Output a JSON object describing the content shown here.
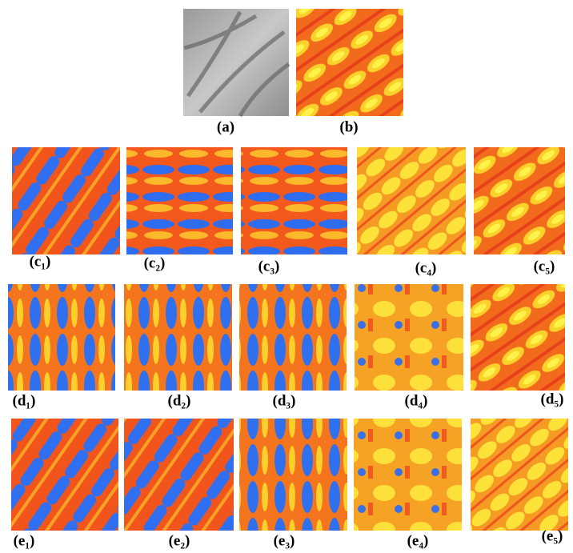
{
  "panels": {
    "a": "(a)",
    "b": "(b)",
    "c": [
      "(c₁)",
      "(c₂)",
      "(c₃)",
      "(c₄)",
      "(c₅)"
    ],
    "d": [
      "(d₁)",
      "(d₂)",
      "(d₃)",
      "(d₄)",
      "(d₅)"
    ],
    "e": [
      "(e₁)",
      "(e₂)",
      "(e₃)",
      "(e₄)",
      "(e₅)"
    ]
  }
}
